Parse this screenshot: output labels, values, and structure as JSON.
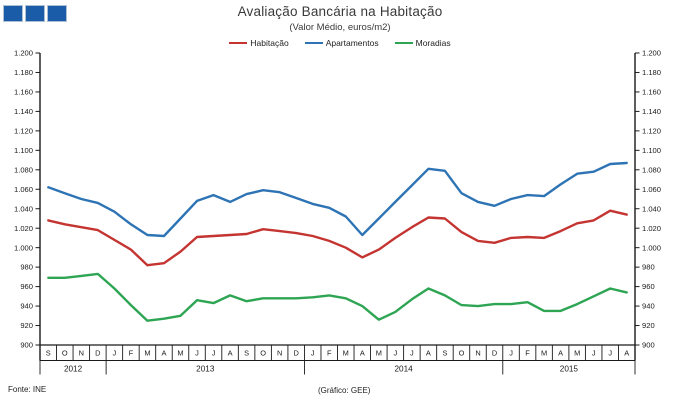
{
  "logo": {
    "color": "#1A5CA8",
    "square_count": 3
  },
  "footer": {
    "source": "Fonte: INE",
    "credit": "(Gráfico: GEE)"
  },
  "chart_data": {
    "type": "line",
    "title": "Avaliação Bancária na Habitação",
    "subtitle": "(Valor Médio, euros/m2)",
    "legend_position": "top",
    "grid": false,
    "ylim": [
      900,
      1200
    ],
    "y_step": 20,
    "y_tick_labels": [
      "1.200",
      "1.180",
      "1.160",
      "1.140",
      "1.120",
      "1.100",
      "1.080",
      "1.060",
      "1.040",
      "1.020",
      "1.000",
      "980",
      "960",
      "940",
      "920",
      "900"
    ],
    "categories": [
      "S",
      "O",
      "N",
      "D",
      "J",
      "F",
      "M",
      "A",
      "M",
      "J",
      "J",
      "A",
      "S",
      "O",
      "N",
      "D",
      "J",
      "F",
      "M",
      "A",
      "M",
      "J",
      "J",
      "A",
      "S",
      "O",
      "N",
      "D",
      "J",
      "F",
      "M",
      "A",
      "M",
      "J",
      "J",
      "A"
    ],
    "years": [
      {
        "label": "2012",
        "months": 4
      },
      {
        "label": "2013",
        "months": 12
      },
      {
        "label": "2014",
        "months": 12
      },
      {
        "label": "2015",
        "months": 8
      }
    ],
    "series": [
      {
        "name": "Habitação",
        "color": "#C43431",
        "values": [
          1028,
          1024,
          1021,
          1018,
          1008,
          998,
          982,
          984,
          996,
          1011,
          1012,
          1013,
          1014,
          1019,
          1017,
          1015,
          1012,
          1007,
          1000,
          990,
          998,
          1010,
          1021,
          1031,
          1030,
          1016,
          1007,
          1005,
          1010,
          1011,
          1010,
          1017,
          1025,
          1028,
          1038,
          1034
        ]
      },
      {
        "name": "Apartamentos",
        "color": "#2E74B5",
        "values": [
          1062,
          1056,
          1050,
          1046,
          1037,
          1024,
          1013,
          1012,
          1030,
          1048,
          1054,
          1047,
          1055,
          1059,
          1057,
          1051,
          1045,
          1041,
          1032,
          1013,
          1030,
          1047,
          1064,
          1081,
          1079,
          1056,
          1047,
          1043,
          1050,
          1054,
          1053,
          1065,
          1076,
          1078,
          1086,
          1087
        ]
      },
      {
        "name": "Moradias",
        "color": "#2EA553",
        "values": [
          969,
          969,
          971,
          973,
          958,
          941,
          925,
          927,
          930,
          946,
          943,
          951,
          945,
          948,
          948,
          948,
          949,
          951,
          948,
          940,
          926,
          934,
          947,
          958,
          951,
          941,
          940,
          942,
          942,
          944,
          935,
          935,
          942,
          950,
          958,
          954
        ]
      }
    ]
  }
}
